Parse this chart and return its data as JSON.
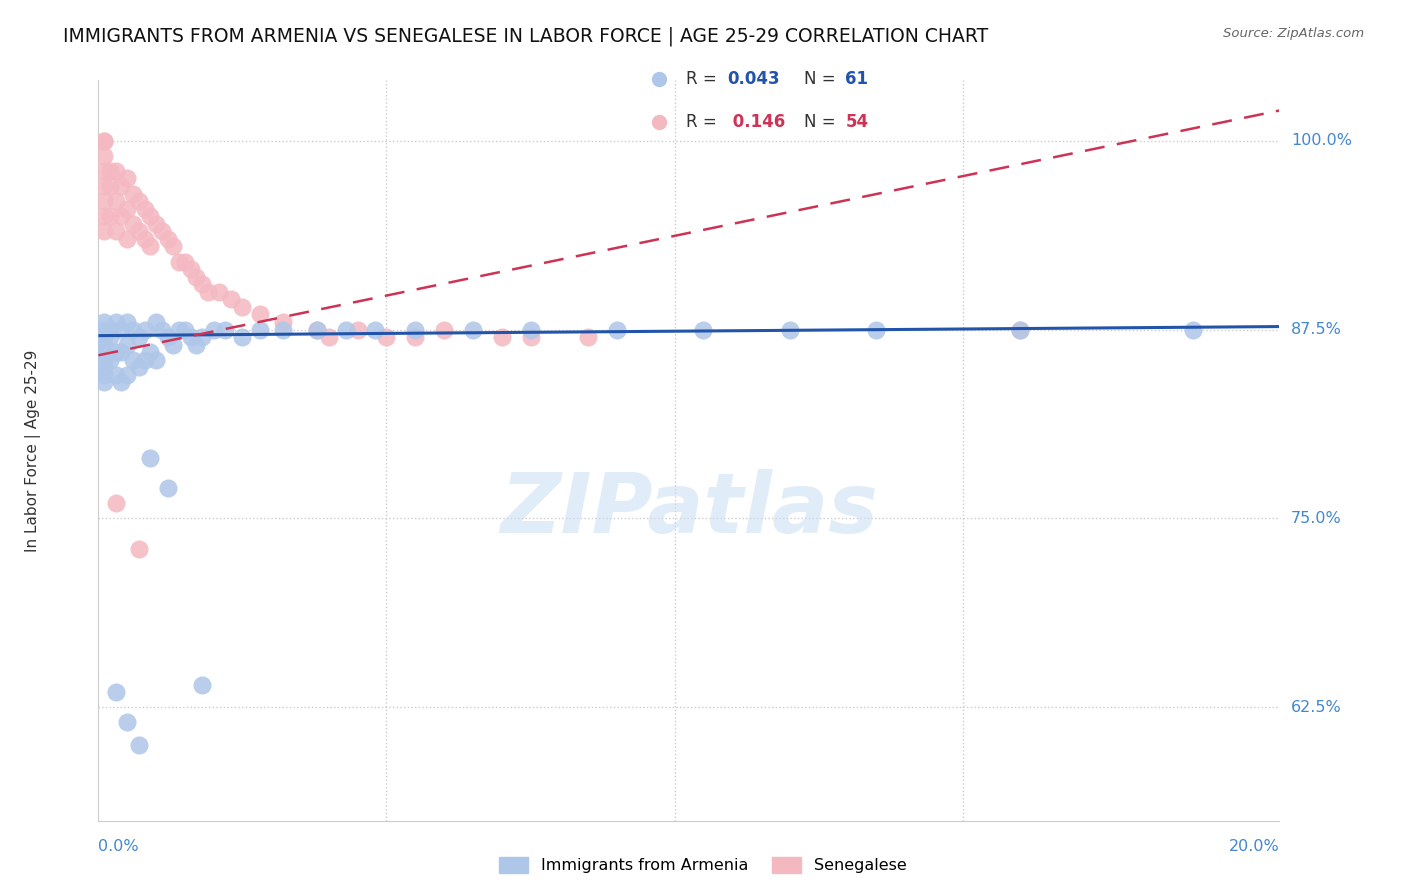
{
  "title": "IMMIGRANTS FROM ARMENIA VS SENEGALESE IN LABOR FORCE | AGE 25-29 CORRELATION CHART",
  "source": "Source: ZipAtlas.com",
  "ylabel": "In Labor Force | Age 25-29",
  "ytick_labels": [
    "62.5%",
    "75.0%",
    "87.5%",
    "100.0%"
  ],
  "ytick_values": [
    0.625,
    0.75,
    0.875,
    1.0
  ],
  "xlim": [
    0.0,
    0.205
  ],
  "ylim": [
    0.55,
    1.04
  ],
  "legend_r1": "0.043",
  "legend_n1": "61",
  "legend_r2": "0.146",
  "legend_n2": "54",
  "color_armenia": "#aec6e8",
  "color_senegal": "#f4b8c1",
  "line_color_armenia": "#2255aa",
  "line_color_senegal": "#cc3355",
  "title_fontsize": 13.5,
  "watermark": "ZIPatlas",
  "armenia_x": [
    0.001,
    0.001,
    0.001,
    0.001,
    0.001,
    0.001,
    0.001,
    0.001,
    0.001,
    0.002,
    0.002,
    0.002,
    0.003,
    0.003,
    0.003,
    0.004,
    0.004,
    0.004,
    0.005,
    0.005,
    0.005,
    0.006,
    0.006,
    0.007,
    0.007,
    0.008,
    0.008,
    0.009,
    0.01,
    0.01,
    0.011,
    0.012,
    0.013,
    0.014,
    0.015,
    0.016,
    0.017,
    0.018,
    0.02,
    0.022,
    0.025,
    0.028,
    0.032,
    0.038,
    0.043,
    0.048,
    0.055,
    0.065,
    0.075,
    0.09,
    0.105,
    0.12,
    0.135,
    0.16,
    0.19,
    0.003,
    0.005,
    0.007,
    0.009,
    0.012,
    0.018
  ],
  "armenia_y": [
    0.88,
    0.875,
    0.87,
    0.865,
    0.86,
    0.855,
    0.85,
    0.845,
    0.84,
    0.875,
    0.87,
    0.855,
    0.88,
    0.86,
    0.845,
    0.875,
    0.86,
    0.84,
    0.88,
    0.865,
    0.845,
    0.875,
    0.855,
    0.87,
    0.85,
    0.875,
    0.855,
    0.86,
    0.88,
    0.855,
    0.875,
    0.87,
    0.865,
    0.875,
    0.875,
    0.87,
    0.865,
    0.87,
    0.875,
    0.875,
    0.87,
    0.875,
    0.875,
    0.875,
    0.875,
    0.875,
    0.875,
    0.875,
    0.875,
    0.875,
    0.875,
    0.875,
    0.875,
    0.875,
    0.875,
    0.635,
    0.615,
    0.6,
    0.79,
    0.77,
    0.64
  ],
  "senegal_x": [
    0.001,
    0.001,
    0.001,
    0.001,
    0.001,
    0.001,
    0.001,
    0.001,
    0.002,
    0.002,
    0.002,
    0.003,
    0.003,
    0.003,
    0.004,
    0.004,
    0.005,
    0.005,
    0.005,
    0.006,
    0.006,
    0.007,
    0.007,
    0.008,
    0.008,
    0.009,
    0.009,
    0.01,
    0.011,
    0.012,
    0.013,
    0.014,
    0.015,
    0.016,
    0.017,
    0.018,
    0.019,
    0.021,
    0.023,
    0.025,
    0.028,
    0.032,
    0.038,
    0.04,
    0.045,
    0.05,
    0.055,
    0.06,
    0.07,
    0.075,
    0.085,
    0.16,
    0.003,
    0.007
  ],
  "senegal_y": [
    1.0,
    1.0,
    0.99,
    0.98,
    0.97,
    0.96,
    0.95,
    0.94,
    0.98,
    0.97,
    0.95,
    0.98,
    0.96,
    0.94,
    0.97,
    0.95,
    0.975,
    0.955,
    0.935,
    0.965,
    0.945,
    0.96,
    0.94,
    0.955,
    0.935,
    0.95,
    0.93,
    0.945,
    0.94,
    0.935,
    0.93,
    0.92,
    0.92,
    0.915,
    0.91,
    0.905,
    0.9,
    0.9,
    0.895,
    0.89,
    0.885,
    0.88,
    0.875,
    0.87,
    0.875,
    0.87,
    0.87,
    0.875,
    0.87,
    0.87,
    0.87,
    0.875,
    0.76,
    0.73
  ],
  "line_armenia_x0": 0.0,
  "line_armenia_x1": 0.205,
  "line_armenia_y0": 0.871,
  "line_armenia_y1": 0.877,
  "line_senegal_x0": 0.0,
  "line_senegal_x1": 0.205,
  "line_senegal_y0": 0.858,
  "line_senegal_y1": 1.02
}
